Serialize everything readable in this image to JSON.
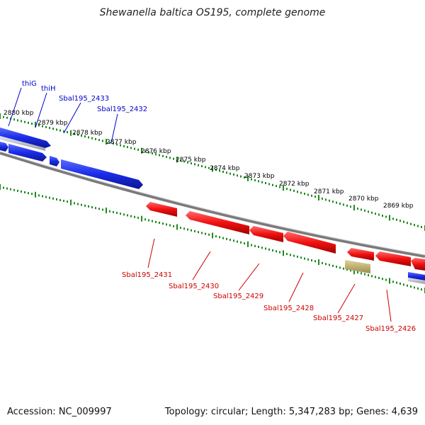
{
  "title": "Shewanella baltica OS195, complete genome",
  "footer": {
    "accession": "Accession: NC_009997",
    "summary": "Topology: circular; Length: 5,347,283 bp; Genes: 4,639"
  },
  "colors": {
    "forward_gene": "#1a2be8",
    "reverse_gene": "#f01010",
    "other_feature": "#b8a96a",
    "backbone": "#8a8a8a",
    "ticks": "#1f8a1f"
  },
  "kbp_labels": [
    "2880 kbp",
    "2879 kbp",
    "2878 kbp",
    "2877 kbp",
    "2876 kbp",
    "2875 kbp",
    "2874 kbp",
    "2873 kbp",
    "2872 kbp",
    "2871 kbp",
    "2870 kbp",
    "2869 kbp"
  ],
  "genes_top": [
    {
      "name": "thiG"
    },
    {
      "name": "thiH"
    },
    {
      "name": "Sbal195_2433"
    },
    {
      "name": "Sbal195_2432"
    }
  ],
  "genes_bottom": [
    {
      "name": "Sbal195_2431"
    },
    {
      "name": "Sbal195_2430"
    },
    {
      "name": "Sbal195_2429"
    },
    {
      "name": "Sbal195_2428"
    },
    {
      "name": "Sbal195_2427"
    },
    {
      "name": "Sbal195_2426"
    }
  ]
}
